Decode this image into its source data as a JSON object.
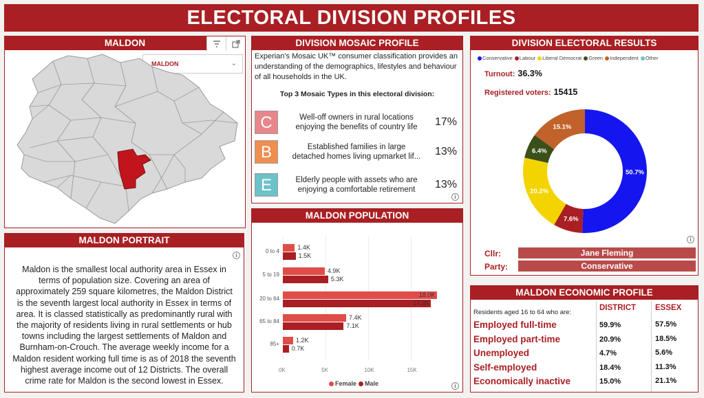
{
  "title": "ELECTORAL DIVISION PROFILES",
  "map": {
    "title": "MALDON",
    "selected": "MALDON"
  },
  "portrait": {
    "title": "MALDON PORTRAIT",
    "text": "Maldon is the smallest local authority area in Essex in terms of population size. Covering an area of approximately 259 square kilometres, the Maldon District is the seventh largest local authority in Essex in terms of area. It is classed statistically as predominantly rural with the majority of residents living in rural settlements or hub towns including the largest settlements of Maldon and Burnham-on-Crouch. The average weekly income for a Maldon resident working full time is as of 2018 the seventh highest average income out of 12 Districts. The overall crime rate for Maldon is the second lowest in Essex."
  },
  "mosaic": {
    "title": "DIVISION MOSAIC PROFILE",
    "intro": "Experian's Mosaic UK™ consumer classification provides an understanding of the demographics, lifestyles and behaviour of all households in the UK.",
    "subtitle": "Top 3 Mosaic Types in this electoral division:",
    "types": [
      {
        "letter": "C",
        "line1": "Well-off owners in rural locations",
        "line2": "enjoying the benefits of country life",
        "pct": "17%",
        "color": "#e8868b"
      },
      {
        "letter": "B",
        "line1": "Established families in large",
        "line2": "detached homes living upmarket lif...",
        "pct": "13%",
        "color": "#ef8e4e"
      },
      {
        "letter": "E",
        "line1": "Elderly people with assets who are",
        "line2": "enjoying a comfortable retirement",
        "pct": "13%",
        "color": "#6cc2c8"
      }
    ]
  },
  "population": {
    "title": "MALDON POPULATION",
    "chart_data": {
      "type": "bar",
      "orientation": "horizontal",
      "categories": [
        "0 to 4",
        "5 to 19",
        "20 to 64",
        "65 to 84",
        "85+"
      ],
      "series": [
        {
          "name": "Female",
          "values": [
            1.4,
            4.9,
            18.0,
            7.4,
            1.2
          ],
          "labels": [
            "1.4K",
            "4.9K",
            "18.0K",
            "7.4K",
            "1.2K"
          ],
          "color": "#e04d48"
        },
        {
          "name": "Male",
          "values": [
            1.5,
            5.3,
            17.3,
            7.1,
            0.7
          ],
          "labels": [
            "1.5K",
            "5.3K",
            "17.3K",
            "7.1K",
            "0.7K"
          ],
          "color": "#a91f23"
        }
      ],
      "xticks": [
        "0K",
        "5K",
        "10K",
        "15K"
      ],
      "xlim": [
        0,
        18.5
      ],
      "unit": "K",
      "legend": "bottom"
    }
  },
  "results": {
    "title": "DIVISION ELECTORAL RESULTS",
    "legend": [
      {
        "name": "Conservative",
        "color": "#1515f0"
      },
      {
        "name": "Labour",
        "color": "#a91f23"
      },
      {
        "name": "Liberal Democrat",
        "color": "#f4d400"
      },
      {
        "name": "Green",
        "color": "#3b4f1a"
      },
      {
        "name": "Independent",
        "color": "#c0622a"
      },
      {
        "name": "Other",
        "color": "#6cc2c8"
      }
    ],
    "turnout_label": "Turnout:",
    "turnout": "36.3%",
    "voters_label": "Registered voters:",
    "voters": "15415",
    "chart_data": {
      "type": "pie",
      "donut": true,
      "slices": [
        {
          "name": "Conservative",
          "value": 50.7,
          "label": "50.7%",
          "color": "#1515f0"
        },
        {
          "name": "Labour",
          "value": 7.6,
          "label": "7.6%",
          "color": "#a91f23"
        },
        {
          "name": "Liberal Democrat",
          "value": 20.2,
          "label": "20.2%",
          "color": "#f4d400"
        },
        {
          "name": "Green",
          "value": 6.4,
          "label": "6.4%",
          "color": "#3b4f1a"
        },
        {
          "name": "Independent",
          "value": 15.1,
          "label": "15.1%",
          "color": "#c0622a"
        }
      ]
    },
    "cllr_label": "Cllr:",
    "cllr": "Jane Fleming",
    "party_label": "Party:",
    "party": "Conservative"
  },
  "economic": {
    "title": "MALDON ECONOMIC PROFILE",
    "intro": "Residents aged 16 to 64 who are:",
    "col_district": "DISTRICT",
    "col_essex": "ESSEX",
    "rows": [
      {
        "label": "Employed full-time",
        "district": "59.9%",
        "essex": "57.5%"
      },
      {
        "label": "Employed part-time",
        "district": "20.9%",
        "essex": "18.5%"
      },
      {
        "label": "Unemployed",
        "district": "4.7%",
        "essex": "5.6%"
      },
      {
        "label": "Self-employed",
        "district": "18.4%",
        "essex": "11.3%"
      },
      {
        "label": "Economically inactive",
        "district": "15.0%",
        "essex": "21.1%"
      }
    ]
  }
}
